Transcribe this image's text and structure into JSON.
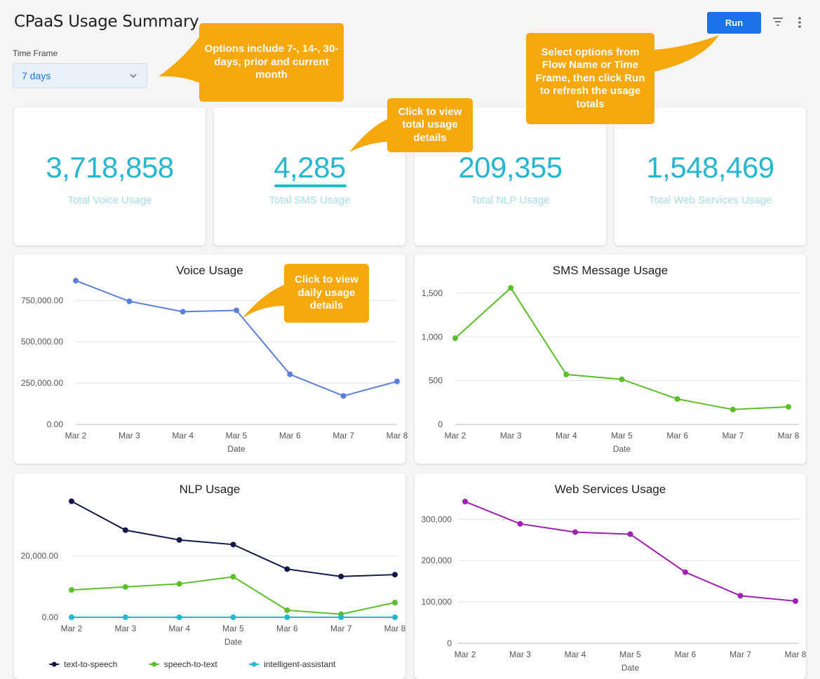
{
  "header": {
    "title": "CPaaS Usage Summary",
    "run_label": "Run"
  },
  "time_frame": {
    "label": "Time Frame",
    "value": "7 days"
  },
  "kpis": [
    {
      "value": "3,718,858",
      "label": "Total Voice Usage"
    },
    {
      "value": "4,285",
      "label": "Total SMS Usage"
    },
    {
      "value": "209,355",
      "label": "Total NLP Usage"
    },
    {
      "value": "1,548,469",
      "label": "Total Web Services Usage"
    }
  ],
  "callouts": {
    "time_frame": "Options include 7-, 14-, 30-days, prior and current month",
    "run": "Select options from Flow Name or Time Frame, then click Run to refresh the usage totals",
    "total": "Click to view total usage details",
    "daily": "Click to view daily usage details"
  },
  "colors": {
    "accent": "#1a73e8",
    "kpi": "#26b6cf",
    "callout": "#f6a80c",
    "voice": "#5b7fdb",
    "sms": "#5cbf2a",
    "web": "#a01fb3",
    "tts": "#13174a",
    "stt": "#5cbf2a",
    "ia": "#26b6cf"
  },
  "chart_data": [
    {
      "type": "line",
      "title": "Voice Usage",
      "xlabel": "Date",
      "ylabel": "",
      "categories": [
        "Mar 2",
        "Mar 3",
        "Mar 4",
        "Mar 5",
        "Mar 6",
        "Mar 7",
        "Mar 8"
      ],
      "yticks": [
        "0.00",
        "250,000.00",
        "500,000.00",
        "750,000.00"
      ],
      "ylim": [
        0,
        900000
      ],
      "series": [
        {
          "name": "voice",
          "color": "#5b7fdb",
          "values": [
            870000,
            745000,
            682000,
            690000,
            303000,
            172000,
            260000
          ]
        }
      ]
    },
    {
      "type": "line",
      "title": "SMS Message Usage",
      "xlabel": "Date",
      "ylabel": "",
      "categories": [
        "Mar 2",
        "Mar 3",
        "Mar 4",
        "Mar 5",
        "Mar 6",
        "Mar 7",
        "Mar 8"
      ],
      "yticks": [
        "0",
        "500",
        "1,000",
        "1,500"
      ],
      "ylim": [
        0,
        1700
      ],
      "series": [
        {
          "name": "sms",
          "color": "#5cbf2a",
          "values": [
            985,
            1560,
            570,
            515,
            290,
            170,
            200
          ]
        }
      ]
    },
    {
      "type": "line",
      "title": "NLP Usage",
      "xlabel": "Date",
      "ylabel": "",
      "categories": [
        "Mar 2",
        "Mar 3",
        "Mar 4",
        "Mar 5",
        "Mar 6",
        "Mar 7",
        "Mar 8"
      ],
      "yticks": [
        "0.00",
        "20,000.00"
      ],
      "ylim": [
        0,
        40000
      ],
      "series": [
        {
          "name": "text-to-speech",
          "color": "#13174a",
          "values": [
            37800,
            28400,
            25200,
            23700,
            15700,
            13300,
            13900
          ]
        },
        {
          "name": "speech-to-text",
          "color": "#5cbf2a",
          "values": [
            8900,
            9900,
            10900,
            13200,
            2300,
            1000,
            4800
          ]
        },
        {
          "name": "intelligent-assistant",
          "color": "#26b6cf",
          "values": [
            0,
            0,
            0,
            0,
            0,
            0,
            0
          ]
        }
      ]
    },
    {
      "type": "line",
      "title": "Web Services Usage",
      "xlabel": "Date",
      "ylabel": "",
      "categories": [
        "Mar 2",
        "Mar 3",
        "Mar 4",
        "Mar 5",
        "Mar 6",
        "Mar 7",
        "Mar 8"
      ],
      "yticks": [
        "0",
        "100,000",
        "200,000",
        "300,000"
      ],
      "ylim": [
        0,
        360000
      ],
      "series": [
        {
          "name": "web",
          "color": "#a01fb3",
          "values": [
            343000,
            289000,
            269000,
            264000,
            172000,
            115000,
            102000
          ]
        }
      ]
    }
  ]
}
